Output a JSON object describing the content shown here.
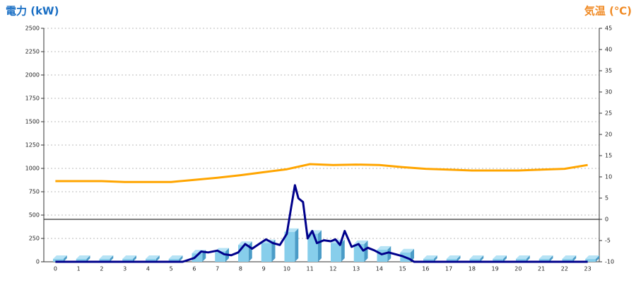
{
  "chart_data": {
    "type": "bar-line",
    "y_title": "電力 (kW)",
    "y2_title": "気温 (℃)",
    "categories": [
      "0",
      "1",
      "2",
      "3",
      "4",
      "5",
      "6",
      "7",
      "8",
      "9",
      "10",
      "11",
      "12",
      "13",
      "14",
      "15",
      "16",
      "17",
      "18",
      "19",
      "20",
      "21",
      "22",
      "23"
    ],
    "ylim": [
      0,
      2500
    ],
    "yticks": [
      0,
      250,
      500,
      750,
      1000,
      1250,
      1500,
      1750,
      2000,
      2250,
      2500
    ],
    "y2lim": [
      -10,
      45
    ],
    "y2ticks": [
      -10,
      -5,
      0,
      5,
      10,
      15,
      20,
      25,
      30,
      35,
      40,
      45
    ],
    "grid": true,
    "series": [
      {
        "kind": "bar",
        "color": "#87ceeb",
        "values": [
          30,
          30,
          30,
          30,
          30,
          30,
          90,
          110,
          180,
          200,
          320,
          300,
          200,
          190,
          130,
          100,
          30,
          30,
          30,
          30,
          30,
          30,
          30,
          30
        ]
      },
      {
        "kind": "line",
        "axis": "y2",
        "color": "#ffa500",
        "values": [
          9,
          9,
          9,
          8.8,
          8.8,
          8.8,
          9.3,
          9.8,
          10.4,
          11.1,
          11.8,
          13,
          12.8,
          12.9,
          12.8,
          12.3,
          11.9,
          11.7,
          11.5,
          11.5,
          11.5,
          11.7,
          11.9,
          12.8
        ]
      },
      {
        "kind": "line",
        "color": "#00008b",
        "x": [
          0,
          5.5,
          6,
          6.3,
          6.6,
          7,
          7.3,
          7.6,
          7.9,
          8.2,
          8.5,
          8.8,
          9.1,
          9.4,
          9.7,
          10,
          10.2,
          10.35,
          10.5,
          10.7,
          10.9,
          11.1,
          11.3,
          11.6,
          11.9,
          12.1,
          12.3,
          12.5,
          12.8,
          13.1,
          13.3,
          13.5,
          13.8,
          14.1,
          14.4,
          14.7,
          15,
          15.3,
          15.5,
          16,
          23
        ],
        "values": [
          0,
          0,
          40,
          110,
          100,
          120,
          80,
          70,
          100,
          190,
          140,
          190,
          240,
          200,
          180,
          300,
          600,
          820,
          680,
          640,
          250,
          330,
          200,
          230,
          220,
          240,
          180,
          330,
          160,
          190,
          120,
          150,
          120,
          80,
          100,
          80,
          60,
          30,
          0,
          0,
          0
        ]
      }
    ]
  }
}
